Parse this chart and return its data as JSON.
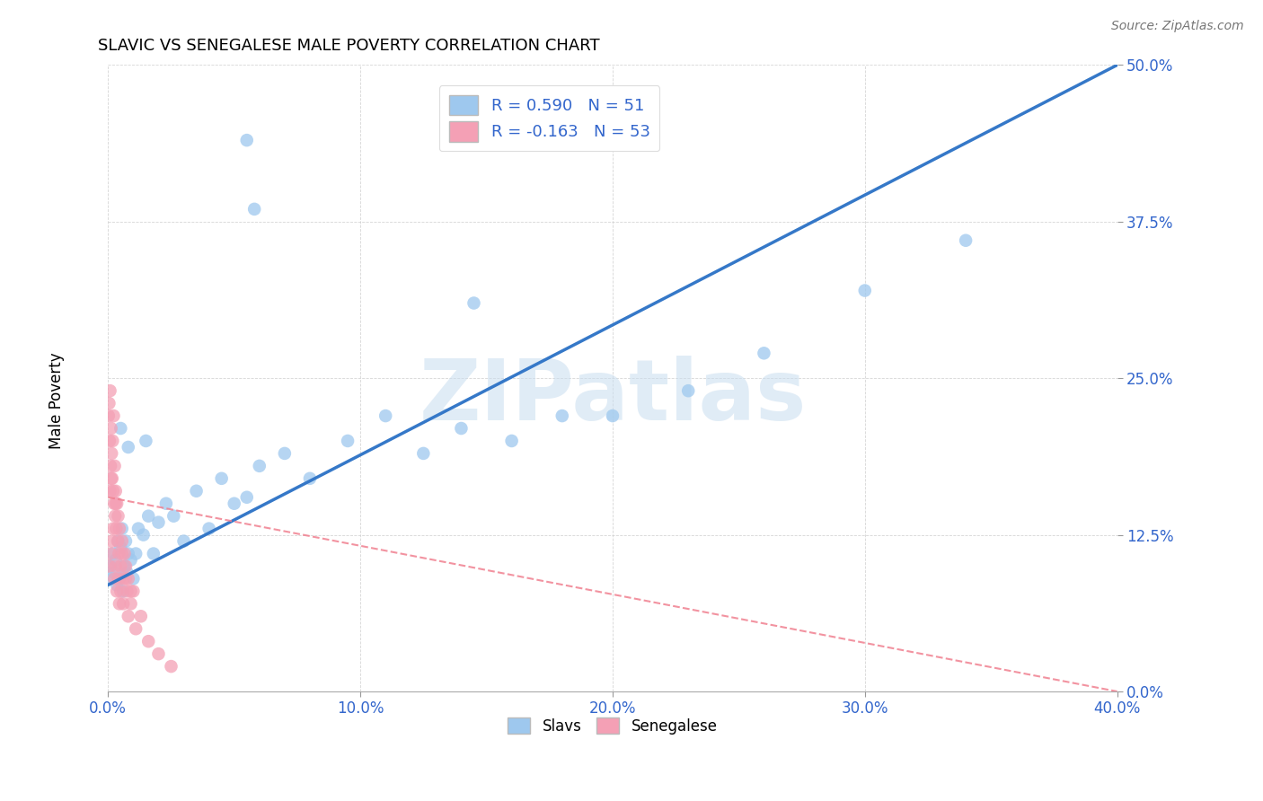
{
  "title": "SLAVIC VS SENEGALESE MALE POVERTY CORRELATION CHART",
  "source": "Source: ZipAtlas.com",
  "xlabel_vals": [
    0.0,
    10.0,
    20.0,
    30.0,
    40.0
  ],
  "ylabel_vals": [
    0.0,
    12.5,
    25.0,
    37.5,
    50.0
  ],
  "xlim": [
    0.0,
    40.0
  ],
  "ylim": [
    0.0,
    50.0
  ],
  "slavic_color": "#9EC8EE",
  "senegalese_color": "#F4A0B5",
  "trend_slavic_color": "#3578C8",
  "trend_senegalese_color": "#F08090",
  "R_slavic": 0.59,
  "N_slavic": 51,
  "R_senegalese": -0.163,
  "N_senegalese": 53,
  "watermark_text": "ZIPatlas",
  "slavic_trend_x": [
    0.0,
    40.0
  ],
  "slavic_trend_y": [
    8.5,
    50.0
  ],
  "sene_trend_x": [
    0.0,
    40.0
  ],
  "sene_trend_y": [
    15.5,
    0.0
  ],
  "slavic_x": [
    0.1,
    0.15,
    0.2,
    0.25,
    0.3,
    0.35,
    0.4,
    0.45,
    0.5,
    0.55,
    0.6,
    0.65,
    0.7,
    0.75,
    0.8,
    0.9,
    1.0,
    1.1,
    1.2,
    1.4,
    1.6,
    1.8,
    2.0,
    2.3,
    2.6,
    3.0,
    3.5,
    4.0,
    4.5,
    5.0,
    5.5,
    6.0,
    7.0,
    8.0,
    9.5,
    11.0,
    12.5,
    14.0,
    16.0,
    18.0,
    20.0,
    23.0,
    26.0,
    30.0,
    34.0,
    5.5,
    5.8,
    14.5,
    0.5,
    0.8,
    1.5
  ],
  "slavic_y": [
    10.0,
    9.0,
    11.0,
    9.5,
    10.5,
    8.5,
    12.0,
    9.0,
    11.5,
    13.0,
    8.0,
    10.0,
    12.0,
    9.5,
    11.0,
    10.5,
    9.0,
    11.0,
    13.0,
    12.5,
    14.0,
    11.0,
    13.5,
    15.0,
    14.0,
    12.0,
    16.0,
    13.0,
    17.0,
    15.0,
    15.5,
    18.0,
    19.0,
    17.0,
    20.0,
    22.0,
    19.0,
    21.0,
    20.0,
    22.0,
    22.0,
    24.0,
    27.0,
    32.0,
    36.0,
    44.0,
    38.5,
    31.0,
    21.0,
    19.5,
    20.0
  ],
  "senegalese_x": [
    0.02,
    0.04,
    0.06,
    0.08,
    0.1,
    0.12,
    0.14,
    0.16,
    0.18,
    0.2,
    0.22,
    0.24,
    0.26,
    0.28,
    0.3,
    0.32,
    0.35,
    0.38,
    0.4,
    0.43,
    0.45,
    0.5,
    0.55,
    0.6,
    0.65,
    0.7,
    0.75,
    0.8,
    0.9,
    1.0,
    0.05,
    0.1,
    0.15,
    0.2,
    0.25,
    0.3,
    0.35,
    0.4,
    0.45,
    0.5,
    0.55,
    0.6,
    0.7,
    0.8,
    0.9,
    1.1,
    1.3,
    1.6,
    2.0,
    2.5,
    0.08,
    0.12,
    0.3
  ],
  "senegalese_y": [
    22.0,
    23.0,
    20.0,
    24.0,
    18.0,
    21.0,
    19.0,
    17.0,
    20.0,
    16.0,
    22.0,
    15.0,
    18.0,
    14.0,
    16.0,
    13.0,
    15.0,
    12.0,
    14.0,
    11.0,
    13.0,
    10.0,
    12.0,
    9.0,
    11.0,
    10.0,
    8.0,
    9.0,
    7.0,
    8.0,
    10.0,
    11.0,
    12.0,
    13.0,
    9.0,
    10.0,
    8.0,
    9.0,
    7.0,
    8.0,
    11.0,
    7.0,
    9.0,
    6.0,
    8.0,
    5.0,
    6.0,
    4.0,
    3.0,
    2.0,
    16.0,
    17.0,
    15.0
  ]
}
